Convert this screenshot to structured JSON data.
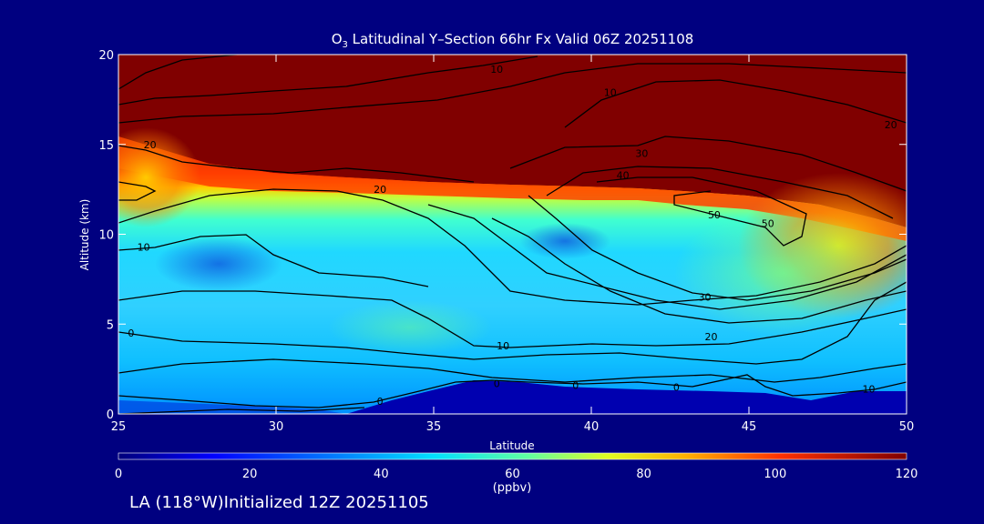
{
  "title_prefix": "O",
  "title_sub": "3",
  "title_rest": " Latitudinal Y–Section 66hr  Fx Valid 06Z 20251108",
  "footer_label": "LA (118°W)Initialized 12Z 20251105",
  "chart_data": {
    "type": "heatmap",
    "xlabel": "Latitude",
    "ylabel": "Altitude (km)",
    "xlim": [
      25,
      50
    ],
    "ylim": [
      0,
      20
    ],
    "xticks": [
      25,
      30,
      35,
      40,
      45,
      50
    ],
    "yticks": [
      0,
      5,
      10,
      15,
      20
    ],
    "colorbar": {
      "label": "(ppbv)",
      "ticks": [
        0,
        20,
        40,
        60,
        80,
        100,
        120
      ],
      "range": [
        0,
        120
      ]
    },
    "contour_levels": [
      0,
      10,
      20,
      30,
      40,
      50
    ],
    "contour_labels": [
      {
        "text": "10",
        "lat": 37.0,
        "alt": 19.2
      },
      {
        "text": "10",
        "lat": 40.6,
        "alt": 17.9
      },
      {
        "text": "20",
        "lat": 49.5,
        "alt": 16.1
      },
      {
        "text": "30",
        "lat": 41.6,
        "alt": 14.5
      },
      {
        "text": "40",
        "lat": 41.0,
        "alt": 13.3
      },
      {
        "text": "20",
        "lat": 26.0,
        "alt": 15.0
      },
      {
        "text": "20",
        "lat": 33.3,
        "alt": 12.5
      },
      {
        "text": "50",
        "lat": 43.9,
        "alt": 11.1
      },
      {
        "text": "50",
        "lat": 45.6,
        "alt": 10.6
      },
      {
        "text": "10",
        "lat": 25.8,
        "alt": 9.3
      },
      {
        "text": "30",
        "lat": 43.6,
        "alt": 6.5
      },
      {
        "text": "20",
        "lat": 43.8,
        "alt": 4.3
      },
      {
        "text": "10",
        "lat": 37.2,
        "alt": 3.8
      },
      {
        "text": "0",
        "lat": 25.4,
        "alt": 4.5
      },
      {
        "text": "0",
        "lat": 33.3,
        "alt": 0.7
      },
      {
        "text": "0",
        "lat": 37.0,
        "alt": 1.7
      },
      {
        "text": "0",
        "lat": 39.5,
        "alt": 1.6
      },
      {
        "text": "0",
        "lat": 42.7,
        "alt": 1.5
      },
      {
        "text": "10",
        "lat": 48.8,
        "alt": 1.4
      }
    ]
  }
}
